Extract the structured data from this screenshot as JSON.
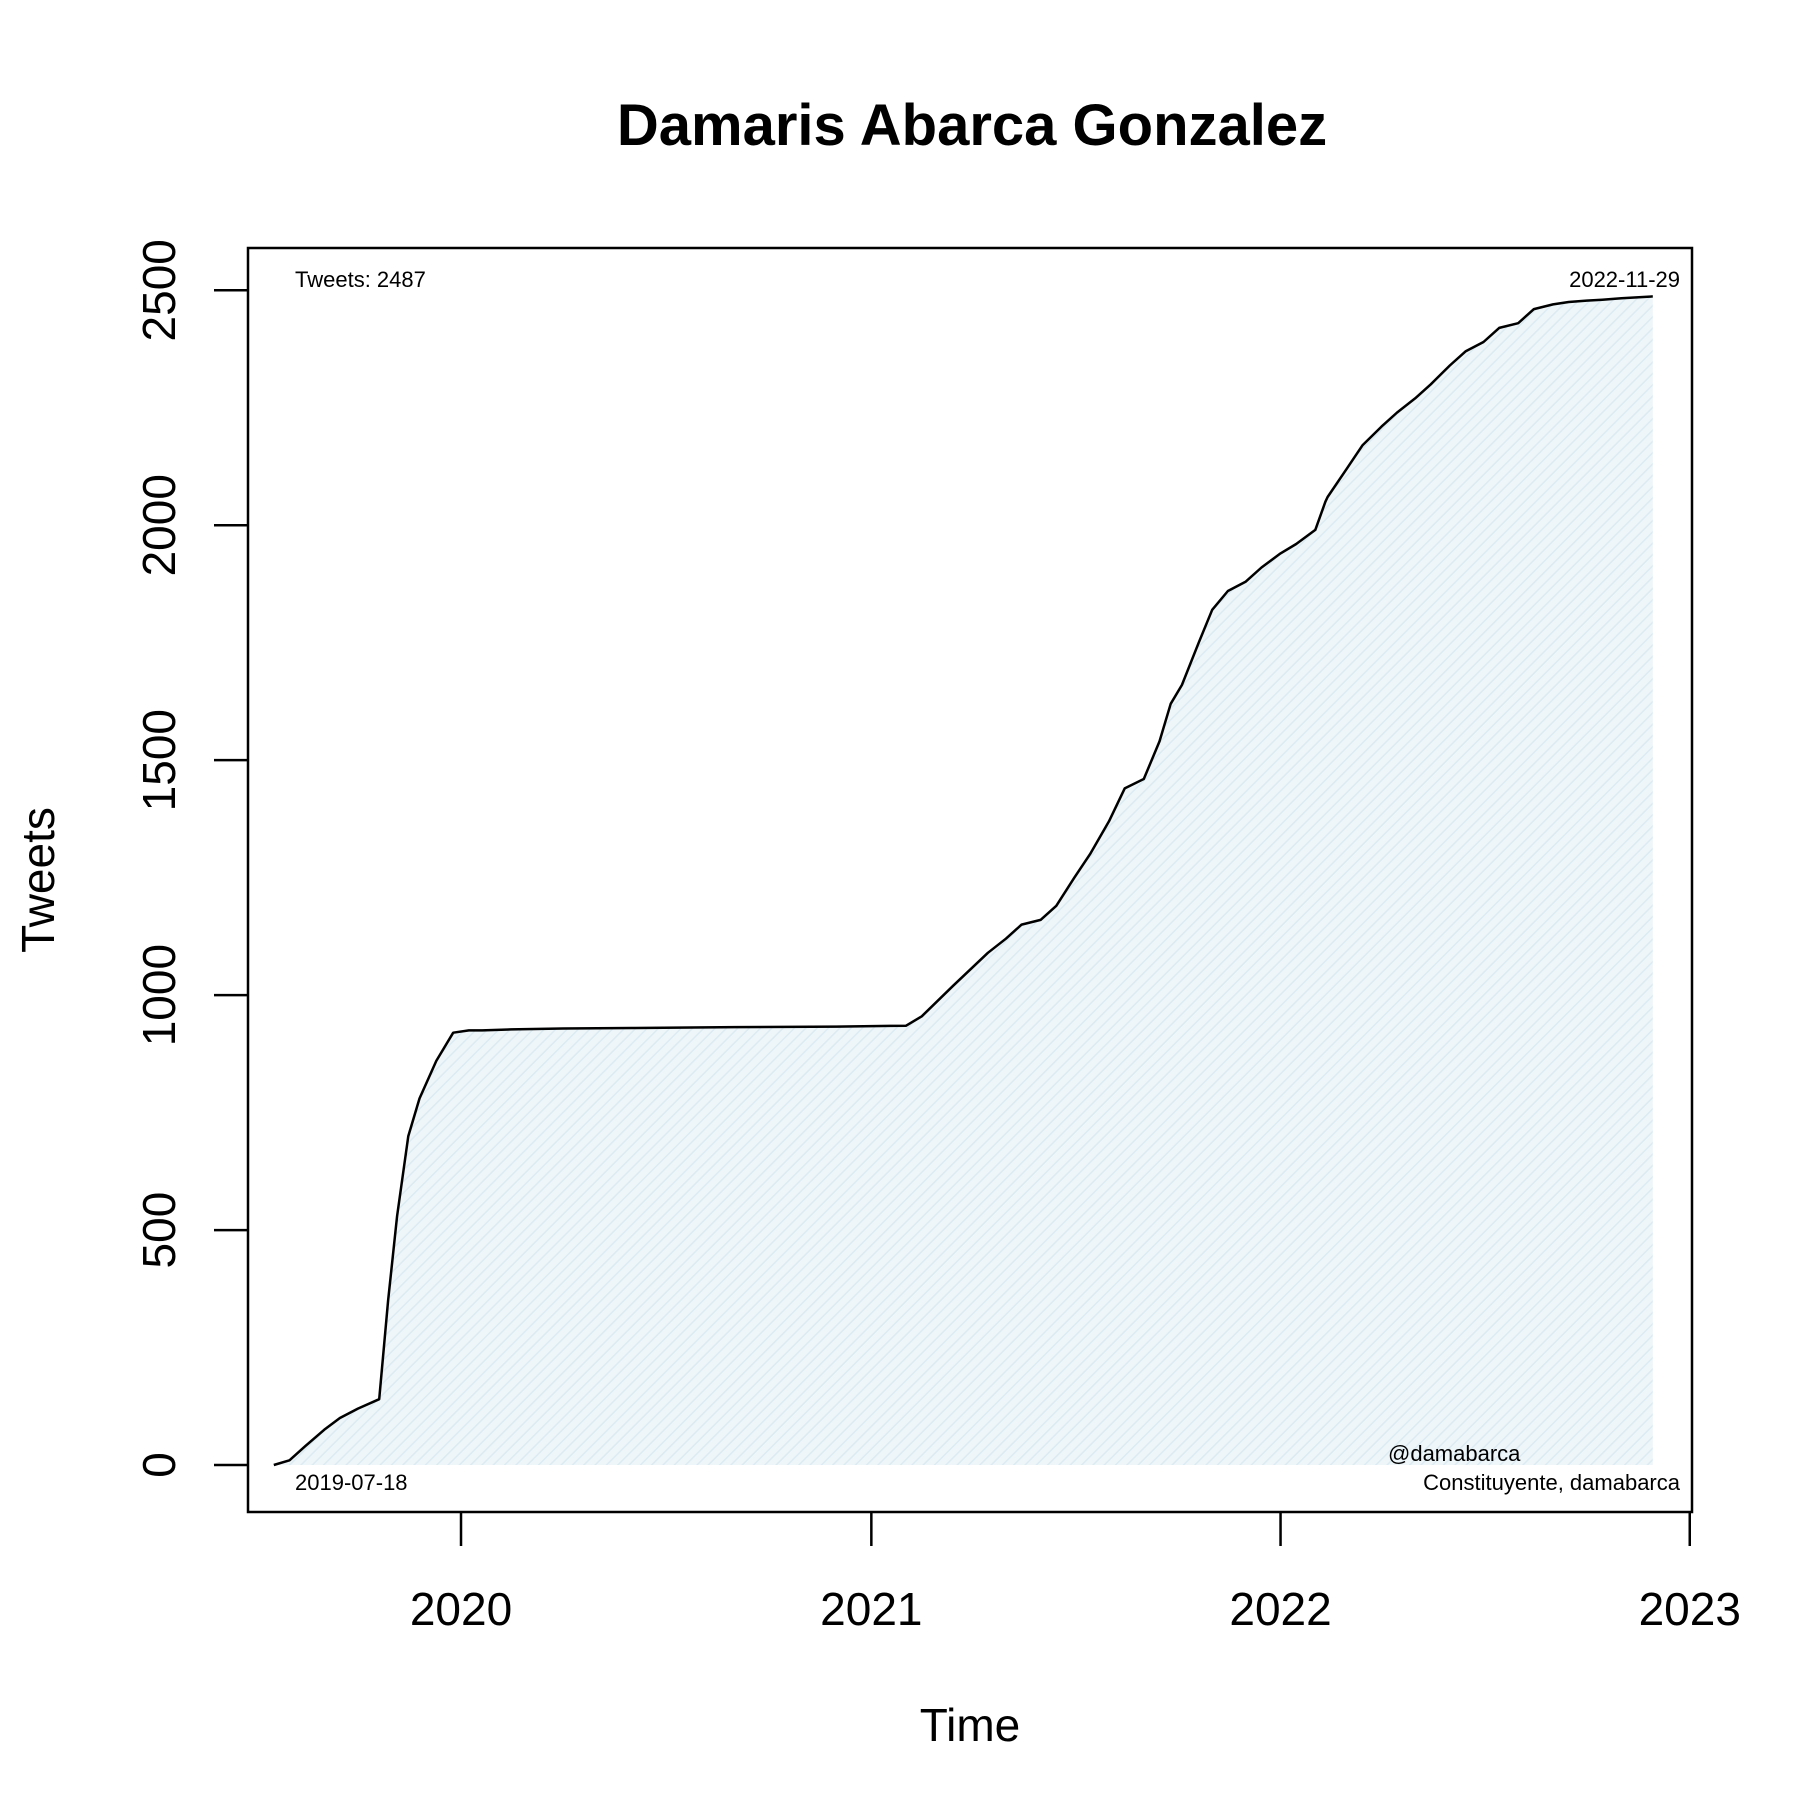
{
  "chart_data": {
    "type": "area",
    "title": "Damaris Abarca Gonzalez",
    "xlabel": "Time",
    "ylabel": "Tweets",
    "xlim": [
      "2019-06-25",
      "2023-01-03"
    ],
    "ylim": [
      -100,
      2590
    ],
    "x_ticks": [
      "2020",
      "2021",
      "2022",
      "2023"
    ],
    "y_ticks": [
      "0",
      "500",
      "1000",
      "1500",
      "2000",
      "2500"
    ],
    "grid": false,
    "colors": {
      "line": "#000000",
      "fill": "#e8f3f8",
      "hatch": "#dcebf2"
    },
    "annotations": {
      "total": "Tweets: 2487",
      "start_date": "2019-07-18",
      "end_date": "2022-11-29",
      "handle": "@damabarca",
      "description": "Constituyente, damabarca"
    },
    "series": [
      {
        "x": [
          "2019-07-18",
          "2019-08-01",
          "2019-08-15",
          "2019-09-01",
          "2019-09-15",
          "2019-10-01",
          "2019-10-20",
          "2019-10-28",
          "2019-11-05",
          "2019-11-15",
          "2019-11-25",
          "2019-12-10",
          "2019-12-25",
          "2020-01-08",
          "2020-01-20",
          "2020-02-15",
          "2020-04-01",
          "2020-06-01",
          "2020-09-01",
          "2020-12-01",
          "2021-02-01",
          "2021-02-15",
          "2021-03-15",
          "2021-04-15",
          "2021-05-01",
          "2021-05-15",
          "2021-06-01",
          "2021-06-15",
          "2021-07-01",
          "2021-07-15",
          "2021-08-01",
          "2021-08-15",
          "2021-09-01",
          "2021-09-15",
          "2021-09-25",
          "2021-10-05",
          "2021-10-20",
          "2021-11-01",
          "2021-11-15",
          "2021-12-01",
          "2021-12-15",
          "2022-01-01",
          "2022-01-15",
          "2022-02-01",
          "2022-02-10",
          "2022-02-12",
          "2022-03-01",
          "2022-03-15",
          "2022-04-01",
          "2022-04-15",
          "2022-05-01",
          "2022-05-15",
          "2022-06-01",
          "2022-06-15",
          "2022-07-01",
          "2022-07-15",
          "2022-08-01",
          "2022-08-15",
          "2022-09-01",
          "2022-09-15",
          "2022-10-01",
          "2022-10-15",
          "2022-11-01",
          "2022-11-29"
        ],
        "y": [
          0,
          10,
          40,
          75,
          100,
          120,
          140,
          350,
          530,
          700,
          780,
          860,
          920,
          925,
          925,
          927,
          929,
          930,
          932,
          933,
          935,
          955,
          1020,
          1090,
          1120,
          1150,
          1160,
          1190,
          1250,
          1300,
          1370,
          1440,
          1460,
          1540,
          1620,
          1660,
          1750,
          1820,
          1860,
          1880,
          1910,
          1940,
          1960,
          1990,
          2050,
          2060,
          2120,
          2170,
          2210,
          2240,
          2270,
          2300,
          2340,
          2370,
          2390,
          2420,
          2430,
          2460,
          2470,
          2475,
          2478,
          2480,
          2483,
          2487
        ]
      }
    ]
  }
}
